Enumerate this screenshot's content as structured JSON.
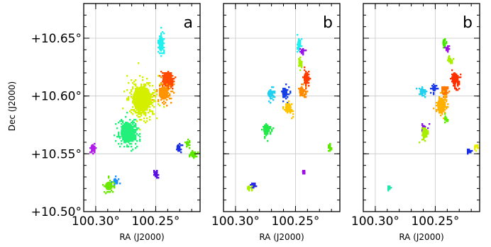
{
  "chart_data": {
    "type": "scatter",
    "description_free": true,
    "xlabel": "RA (J2000)",
    "ylabel": "Dec (J2000)",
    "xlim": [
      100.31,
      100.213
    ],
    "ylim": [
      10.5,
      10.68
    ],
    "x_ticks": [
      {
        "value": 100.3,
        "label": "100.30°"
      },
      {
        "value": 100.25,
        "label": "100.25°"
      }
    ],
    "y_ticks": [
      {
        "value": 10.5,
        "label": "+10.50°"
      },
      {
        "value": 10.55,
        "label": "+10.55°"
      },
      {
        "value": 10.6,
        "label": "+10.60°"
      },
      {
        "value": 10.65,
        "label": "+10.65°"
      }
    ],
    "grid": true,
    "panels": [
      {
        "letter": "a",
        "clumps": [
          {
            "ra": 100.2456,
            "dec": 10.6455,
            "sra": 0.0026,
            "sdec": 0.0095,
            "color": "#22f0ee"
          },
          {
            "ra": 100.2405,
            "dec": 10.6145,
            "sra": 0.0052,
            "sdec": 0.0085,
            "color": "#ff4a00"
          },
          {
            "ra": 100.2435,
            "dec": 10.6025,
            "sra": 0.0052,
            "sdec": 0.0075,
            "color": "#ff9400"
          },
          {
            "ra": 100.2615,
            "dec": 10.5975,
            "sra": 0.0105,
            "sdec": 0.0145,
            "color": "#d4f000"
          },
          {
            "ra": 100.2735,
            "dec": 10.5685,
            "sra": 0.0076,
            "sdec": 0.0115,
            "color": "#22f07a"
          },
          {
            "ra": 100.3026,
            "dec": 10.5555,
            "sra": 0.0023,
            "sdec": 0.004,
            "color": "#b21ce8"
          },
          {
            "ra": 100.2312,
            "dec": 10.5558,
            "sra": 0.002,
            "sdec": 0.0035,
            "color": "#1a2ee6"
          },
          {
            "ra": 100.2236,
            "dec": 10.559,
            "sra": 0.0017,
            "sdec": 0.003,
            "color": "#5ee800"
          },
          {
            "ra": 100.2192,
            "dec": 10.55,
            "sra": 0.0032,
            "sdec": 0.003,
            "color": "#5ee800"
          },
          {
            "ra": 100.2502,
            "dec": 10.5328,
            "sra": 0.002,
            "sdec": 0.003,
            "color": "#5a10e0"
          },
          {
            "ra": 100.2839,
            "dec": 10.527,
            "sra": 0.002,
            "sdec": 0.0028,
            "color": "#1a90ff"
          },
          {
            "ra": 100.2891,
            "dec": 10.5222,
            "sra": 0.0042,
            "sdec": 0.005,
            "color": "#6ae800"
          }
        ]
      },
      {
        "letter": "b",
        "clumps": [
          {
            "ra": 100.247,
            "dec": 10.645,
            "sra": 0.002,
            "sdec": 0.0055,
            "color": "#22f0ee"
          },
          {
            "ra": 100.2443,
            "dec": 10.639,
            "sra": 0.0014,
            "sdec": 0.0025,
            "color": "#9a14e6"
          },
          {
            "ra": 100.2465,
            "dec": 10.629,
            "sra": 0.0015,
            "sdec": 0.0045,
            "color": "#a6f000"
          },
          {
            "ra": 100.2412,
            "dec": 10.6155,
            "sra": 0.0028,
            "sdec": 0.0065,
            "color": "#ff3c00"
          },
          {
            "ra": 100.245,
            "dec": 10.604,
            "sra": 0.0028,
            "sdec": 0.0055,
            "color": "#ff8a00"
          },
          {
            "ra": 100.259,
            "dec": 10.603,
            "sra": 0.003,
            "sdec": 0.0055,
            "color": "#1640e6"
          },
          {
            "ra": 100.271,
            "dec": 10.602,
            "sra": 0.0032,
            "sdec": 0.0045,
            "color": "#22d0f0"
          },
          {
            "ra": 100.256,
            "dec": 10.59,
            "sra": 0.0036,
            "sdec": 0.0055,
            "color": "#ffc400"
          },
          {
            "ra": 100.2745,
            "dec": 10.571,
            "sra": 0.0032,
            "sdec": 0.0065,
            "color": "#22e84a"
          },
          {
            "ra": 100.222,
            "dec": 10.5565,
            "sra": 0.0009,
            "sdec": 0.002,
            "color": "#5ee800"
          },
          {
            "ra": 100.244,
            "dec": 10.5345,
            "sra": 0.0008,
            "sdec": 0.0015,
            "color": "#a010e0"
          },
          {
            "ra": 100.2856,
            "dec": 10.523,
            "sra": 0.0016,
            "sdec": 0.0022,
            "color": "#2a2ae6"
          },
          {
            "ra": 100.2892,
            "dec": 10.521,
            "sra": 0.0018,
            "sdec": 0.0018,
            "color": "#a8f000"
          }
        ]
      },
      {
        "letter": "b",
        "clumps": [
          {
            "ra": 100.243,
            "dec": 10.646,
            "sra": 0.0015,
            "sdec": 0.0045,
            "color": "#44e800"
          },
          {
            "ra": 100.2405,
            "dec": 10.641,
            "sra": 0.0011,
            "sdec": 0.0022,
            "color": "#a010e0"
          },
          {
            "ra": 100.2385,
            "dec": 10.632,
            "sra": 0.0016,
            "sdec": 0.004,
            "color": "#a8f000"
          },
          {
            "ra": 100.234,
            "dec": 10.615,
            "sra": 0.003,
            "sdec": 0.0075,
            "color": "#ff3000"
          },
          {
            "ra": 100.2425,
            "dec": 10.6045,
            "sra": 0.0032,
            "sdec": 0.0055,
            "color": "#ff7800"
          },
          {
            "ra": 100.251,
            "dec": 10.6065,
            "sra": 0.0022,
            "sdec": 0.0035,
            "color": "#1a3ae6"
          },
          {
            "ra": 100.261,
            "dec": 10.604,
            "sra": 0.0026,
            "sdec": 0.004,
            "color": "#22d0f0"
          },
          {
            "ra": 100.245,
            "dec": 10.592,
            "sra": 0.0045,
            "sdec": 0.009,
            "color": "#ffb000"
          },
          {
            "ra": 100.2415,
            "dec": 10.581,
            "sra": 0.0014,
            "sdec": 0.003,
            "color": "#60ee00"
          },
          {
            "ra": 100.2595,
            "dec": 10.572,
            "sra": 0.0022,
            "sdec": 0.004,
            "color": "#8a16e6"
          },
          {
            "ra": 100.259,
            "dec": 10.568,
            "sra": 0.0028,
            "sdec": 0.006,
            "color": "#a8ee00"
          },
          {
            "ra": 100.2225,
            "dec": 10.552,
            "sra": 0.0016,
            "sdec": 0.0022,
            "color": "#1a2ee6"
          },
          {
            "ra": 100.2165,
            "dec": 10.5565,
            "sra": 0.0014,
            "sdec": 0.0022,
            "color": "#e8f000"
          },
          {
            "ra": 100.289,
            "dec": 10.521,
            "sra": 0.0012,
            "sdec": 0.0014,
            "color": "#22e8b0"
          }
        ]
      }
    ]
  }
}
